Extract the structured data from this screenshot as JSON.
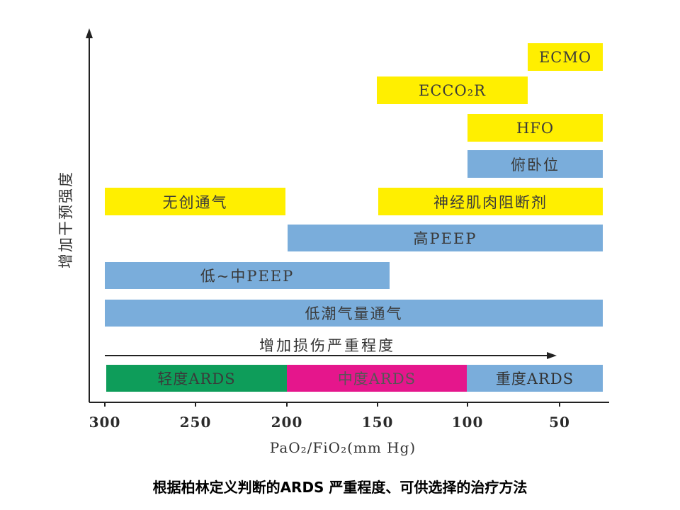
{
  "y_axis_label": "增加干预强度",
  "x_axis_label": "PaO₂/FiO₂(mm Hg)",
  "x_ticks": [
    "300",
    "250",
    "200",
    "150",
    "100",
    "50"
  ],
  "severity_arrow_label": "增加损伤严重程度",
  "severity": [
    {
      "label": "轻度ARDS",
      "color": "#0e9d5a",
      "text_color": "#3a3a3a"
    },
    {
      "label": "中度ARDS",
      "color": "#e5168c",
      "text_color": "#555555"
    },
    {
      "label": "重度ARDS",
      "color": "#7aaddb",
      "text_color": "#333333"
    }
  ],
  "treatments": [
    {
      "label": "ECMO",
      "color": "#ffef00"
    },
    {
      "label": "ECCO₂R",
      "color": "#ffef00"
    },
    {
      "label": "HFO",
      "color": "#ffef00"
    },
    {
      "label": "俯卧位",
      "color": "#7aaddb"
    },
    {
      "label": "无创通气",
      "color": "#ffef00"
    },
    {
      "label": "神经肌肉阻断剂",
      "color": "#ffef00"
    },
    {
      "label": "高PEEP",
      "color": "#7aaddb"
    },
    {
      "label": "低~中PEEP",
      "color": "#7aaddb"
    },
    {
      "label": "低潮气量通气",
      "color": "#7aaddb"
    }
  ],
  "caption": "根据柏林定义判断的ARDS 严重程度、可供选择的治疗方法"
}
